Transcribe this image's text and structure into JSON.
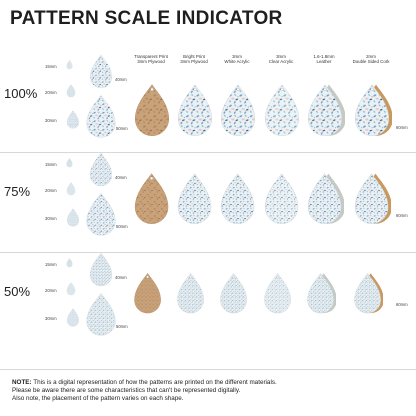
{
  "title": "PATTERN SCALE INDICATOR",
  "colors": {
    "floral_bg": "#e9f1f6",
    "leaf_blue": "#6d9bbf",
    "leaf_teal": "#8fb8b5",
    "petal_pink": "#ecc5c3",
    "navy": "#2f4d6e",
    "wood": "#c9a27a",
    "wood_dark": "#b98d62",
    "leather": "#c5c9c3",
    "cork": "#c8985f"
  },
  "columns": [
    {
      "line1": "Transparent Print",
      "line2": "3mm Plywood"
    },
    {
      "line1": "Bright Print",
      "line2": "3mm Plywood"
    },
    {
      "line1": "3mm",
      "line2": "White Acrylic"
    },
    {
      "line1": "3mm",
      "line2": "Clear Acrylic"
    },
    {
      "line1": "1.6-1.8mm",
      "line2": "Leather"
    },
    {
      "line1": "2mm",
      "line2": "Double Sided Cork"
    }
  ],
  "sections": [
    {
      "scale": "100%",
      "sizes": [
        "15mm",
        "20mm",
        "30mm"
      ],
      "big_sizes": [
        "40mm",
        "50mm"
      ],
      "row_size": "60mm"
    },
    {
      "scale": "75%",
      "sizes": [
        "15mm",
        "20mm",
        "30mm"
      ],
      "big_sizes": [
        "40mm",
        "50mm"
      ],
      "row_size": "60mm"
    },
    {
      "scale": "50%",
      "sizes": [
        "15mm",
        "20mm",
        "30mm"
      ],
      "big_sizes": [
        "40mm",
        "50mm"
      ],
      "row_size": "60mm"
    }
  ],
  "note": {
    "label": "NOTE:",
    "line1": "This is a digital representation of how the patterns are printed on the different materials.",
    "line2": "Please be aware there are some characteristics that can't be represented digitally.",
    "line3": "Also note, the placement of the pattern varies on each shape."
  }
}
